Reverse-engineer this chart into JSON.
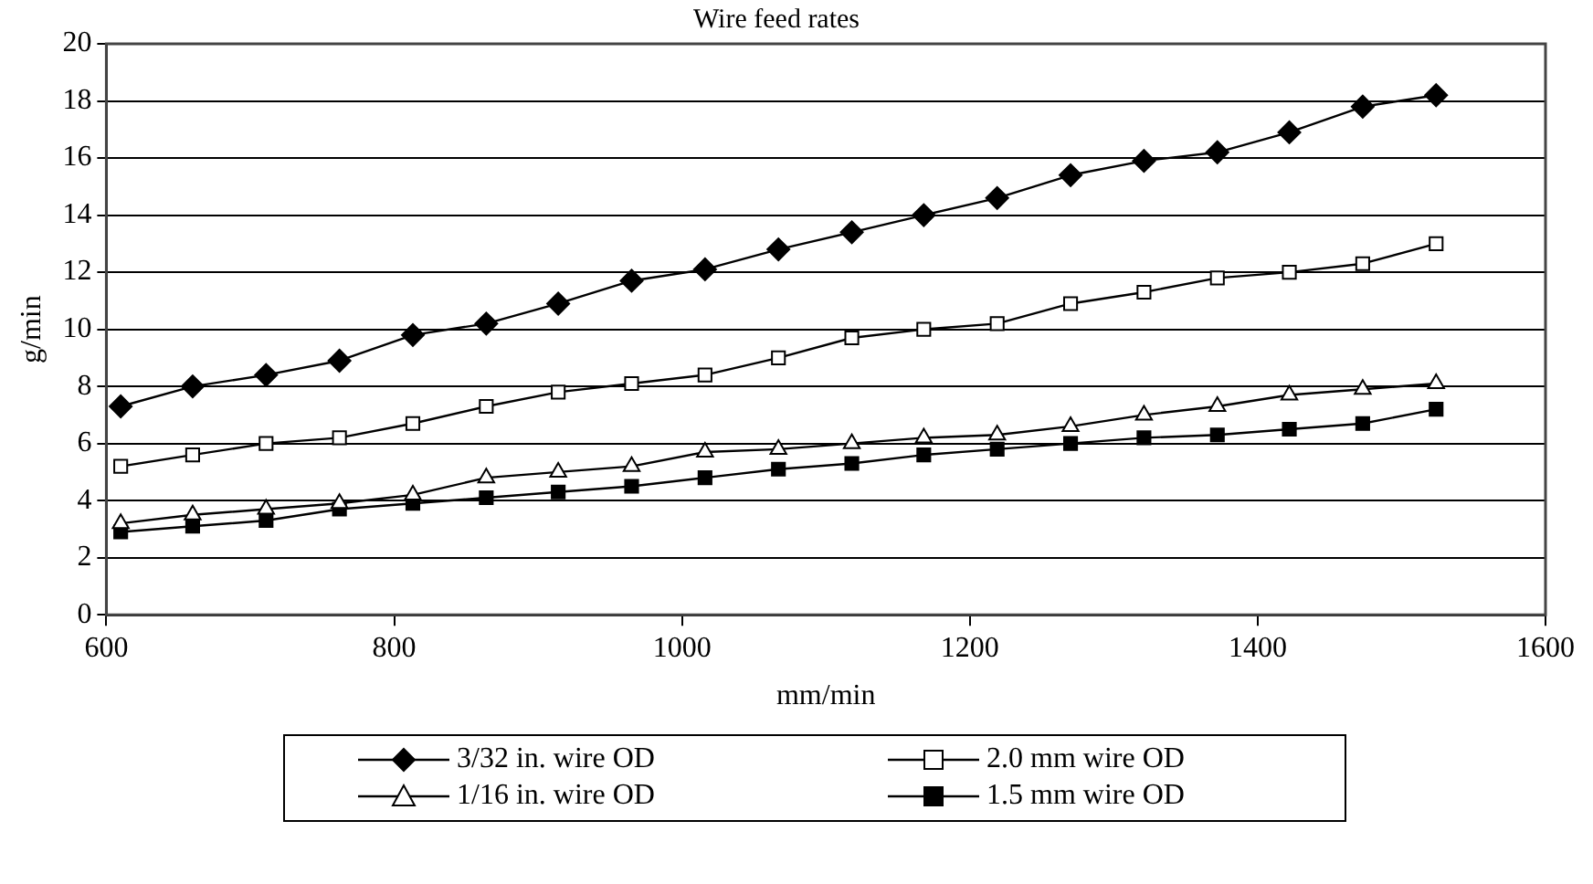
{
  "chart_data": {
    "type": "line",
    "title": "Wire feed rates",
    "xlabel": "mm/min",
    "ylabel": "g/min",
    "x": [
      610,
      660,
      711,
      762,
      813,
      864,
      914,
      965,
      1016,
      1067,
      1118,
      1168,
      1219,
      1270,
      1321,
      1372,
      1422,
      1473,
      1524
    ],
    "xlim": [
      600,
      1600
    ],
    "xticks": [
      600,
      800,
      1000,
      1200,
      1400,
      1600
    ],
    "ylim": [
      0,
      20
    ],
    "yticks": [
      0,
      2,
      4,
      6,
      8,
      10,
      12,
      14,
      16,
      18,
      20
    ],
    "grid": "y",
    "legend": "bottom",
    "line_style": "solid",
    "series": [
      {
        "name": "3/32 in. wire OD",
        "color": "#000000",
        "marker": "diamond",
        "values": [
          7.3,
          8.0,
          8.4,
          8.9,
          9.8,
          10.2,
          10.9,
          11.7,
          12.1,
          12.8,
          13.4,
          14.0,
          14.6,
          15.4,
          15.9,
          16.2,
          16.9,
          17.8,
          18.2
        ]
      },
      {
        "name": "2.0 mm wire OD",
        "color": "#ffffff",
        "marker": "square",
        "values": [
          5.2,
          5.6,
          6.0,
          6.2,
          6.7,
          7.3,
          7.8,
          8.1,
          8.4,
          9.0,
          9.7,
          10.0,
          10.2,
          10.9,
          11.3,
          11.8,
          12.0,
          12.3,
          13.0
        ]
      },
      {
        "name": "1/16 in. wire OD",
        "color": "#ffffff",
        "marker": "triangle",
        "values": [
          3.2,
          3.5,
          3.7,
          3.9,
          4.2,
          4.8,
          5.0,
          5.2,
          5.7,
          5.8,
          6.0,
          6.2,
          6.3,
          6.6,
          7.0,
          7.3,
          7.7,
          7.9,
          8.1
        ]
      },
      {
        "name": "1.5 mm wire OD",
        "color": "#000000",
        "marker": "square",
        "values": [
          2.9,
          3.1,
          3.3,
          3.7,
          3.9,
          4.1,
          4.3,
          4.5,
          4.8,
          5.1,
          5.3,
          5.6,
          5.8,
          6.0,
          6.2,
          6.3,
          6.5,
          6.7,
          7.2
        ]
      }
    ]
  }
}
